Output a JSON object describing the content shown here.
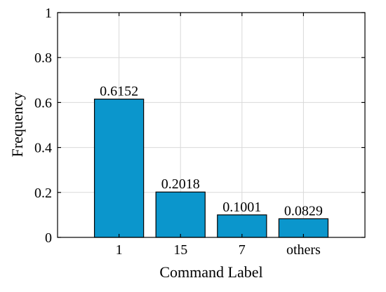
{
  "chart_data": {
    "type": "bar",
    "categories": [
      "1",
      "15",
      "7",
      "others"
    ],
    "values": [
      0.6152,
      0.2018,
      0.1001,
      0.0829
    ],
    "data_labels": [
      "0.6152",
      "0.2018",
      "0.1001",
      "0.0829"
    ],
    "xlabel": "Command Label",
    "ylabel": "Frequency",
    "ylim": [
      0,
      1
    ],
    "yticks": [
      0,
      0.2,
      0.4,
      0.6,
      0.8,
      1
    ],
    "ytick_labels": [
      "0",
      "0.2",
      "0.4",
      "0.6",
      "0.8",
      "1"
    ],
    "grid": true,
    "legend": "none",
    "colors": {
      "bar_fill": "#0b96cc",
      "bar_edge": "#000000",
      "grid": "#d9d9d9",
      "axis": "#000000"
    }
  }
}
